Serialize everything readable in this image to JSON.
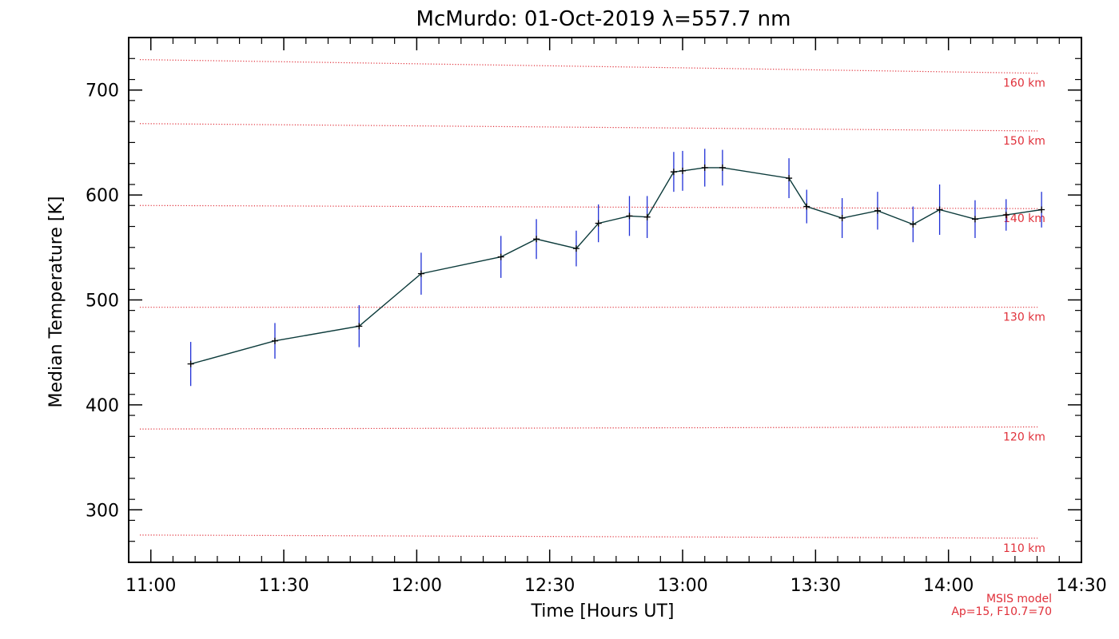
{
  "chart_data": {
    "type": "line",
    "title": "McMurdo: 01-Oct-2019 λ=557.7 nm",
    "xlabel": "Time [Hours UT]",
    "ylabel": "Median Temperature [K]",
    "xlim": [
      "10:55",
      "14:30"
    ],
    "ylim": [
      250,
      750
    ],
    "x_ticks": [
      "11:00",
      "11:30",
      "12:00",
      "12:30",
      "13:00",
      "13:30",
      "14:00",
      "14:30"
    ],
    "y_ticks": [
      300,
      400,
      500,
      600,
      700
    ],
    "colors": {
      "line": "#0b3a3a",
      "error_bar": "#1f2fd6",
      "marker": "#000000",
      "reference": "#e0303a"
    },
    "series": [
      {
        "x": [
          "11:09",
          "11:28",
          "11:47",
          "12:01",
          "12:19",
          "12:27",
          "12:36",
          "12:41",
          "12:48",
          "12:52",
          "12:58",
          "13:00",
          "13:05",
          "13:09",
          "13:24",
          "13:28",
          "13:36",
          "13:44",
          "13:52",
          "13:58",
          "14:06",
          "14:13",
          "14:21"
        ],
        "y": [
          439,
          461,
          475,
          525,
          541,
          558,
          549,
          573,
          580,
          579,
          622,
          623,
          626,
          626,
          616,
          589,
          578,
          585,
          572,
          586,
          577,
          581,
          586
        ],
        "error": [
          21,
          17,
          20,
          20,
          20,
          19,
          17,
          18,
          19,
          20,
          19,
          19,
          18,
          17,
          19,
          16,
          19,
          18,
          17,
          24,
          18,
          15,
          17
        ]
      }
    ],
    "reference_lines": [
      {
        "label": "110 km",
        "y_start": 276,
        "y_end": 273
      },
      {
        "label": "120 km",
        "y_start": 377,
        "y_end": 379
      },
      {
        "label": "130 km",
        "y_start": 493,
        "y_end": 493
      },
      {
        "label": "140 km",
        "y_start": 590,
        "y_end": 587
      },
      {
        "label": "150 km",
        "y_start": 668,
        "y_end": 661
      },
      {
        "label": "160 km",
        "y_start": 729,
        "y_end": 716
      }
    ],
    "model_note": [
      "MSIS model",
      "Ap=15, F10.7=70"
    ]
  }
}
